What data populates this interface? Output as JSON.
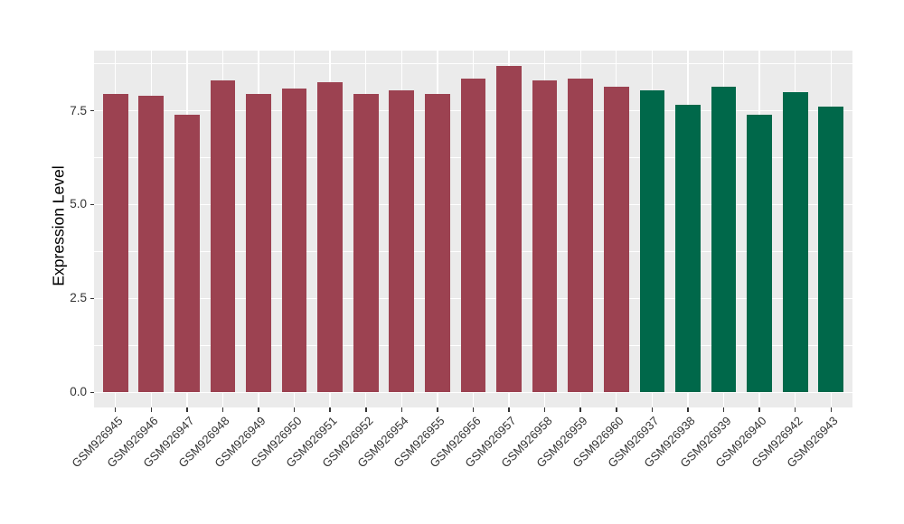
{
  "style": {
    "background": "#FFFFFF",
    "panel_background": "#EBEBEB",
    "grid_color": "#FFFFFF",
    "axis_text_color": "#333333",
    "axis_title_color": "#000000"
  },
  "chart_data": {
    "type": "bar",
    "title": "",
    "xlabel": "",
    "ylabel": "Expression Level",
    "ylim": [
      -0.4,
      9.1
    ],
    "yticks": [
      {
        "value": 0.0,
        "label": "0.0"
      },
      {
        "value": 2.5,
        "label": "2.5"
      },
      {
        "value": 5.0,
        "label": "5.0"
      },
      {
        "value": 7.5,
        "label": "7.5"
      }
    ],
    "minor_gridlines": [
      1.25,
      3.75,
      6.25,
      8.75
    ],
    "grid": "white major+minor horizontal lines, white major vertical line at each category",
    "legend_position": "none",
    "bar_width_fraction": 0.7,
    "category_edge_padding": 0.6,
    "series": [
      {
        "name": "left-group-dark-red",
        "color": "#9C4251",
        "data": [
          {
            "category": "GSM926945",
            "value": 7.95
          },
          {
            "category": "GSM926946",
            "value": 7.9
          },
          {
            "category": "GSM926947",
            "value": 7.4
          },
          {
            "category": "GSM926948",
            "value": 8.3
          },
          {
            "category": "GSM926949",
            "value": 7.95
          },
          {
            "category": "GSM926950",
            "value": 8.1
          },
          {
            "category": "GSM926951",
            "value": 8.25
          },
          {
            "category": "GSM926952",
            "value": 7.95
          },
          {
            "category": "GSM926954",
            "value": 8.05
          },
          {
            "category": "GSM926955",
            "value": 7.95
          },
          {
            "category": "GSM926956",
            "value": 8.35
          },
          {
            "category": "GSM926957",
            "value": 8.7
          },
          {
            "category": "GSM926958",
            "value": 8.3
          },
          {
            "category": "GSM926959",
            "value": 8.35
          },
          {
            "category": "GSM926960",
            "value": 8.15
          }
        ]
      },
      {
        "name": "right-group-dark-green",
        "color": "#00684A",
        "data": [
          {
            "category": "GSM926937",
            "value": 8.05
          },
          {
            "category": "GSM926938",
            "value": 7.65
          },
          {
            "category": "GSM926939",
            "value": 8.15
          },
          {
            "category": "GSM926940",
            "value": 7.4
          },
          {
            "category": "GSM926942",
            "value": 8.0
          },
          {
            "category": "GSM926943",
            "value": 7.6
          }
        ]
      }
    ]
  }
}
